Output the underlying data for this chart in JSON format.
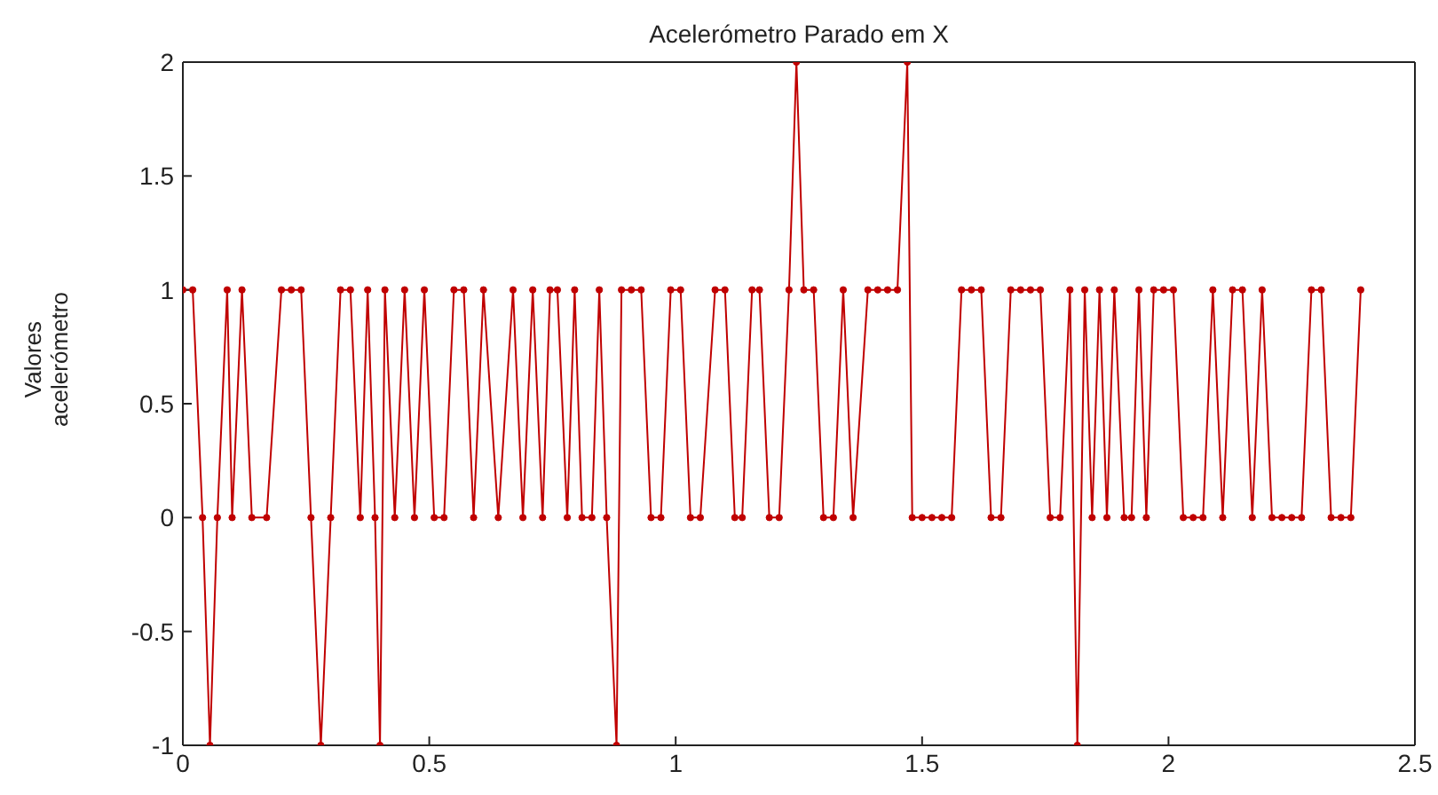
{
  "chart_data": {
    "type": "line",
    "title": "Acelerómetro Parado em X",
    "ylabel": "Valores acelerómetro",
    "x": [
      0,
      0.02,
      0.04,
      0.055,
      0.07,
      0.09,
      0.1,
      0.12,
      0.14,
      0.17,
      0.2,
      0.22,
      0.24,
      0.26,
      0.28,
      0.3,
      0.32,
      0.34,
      0.36,
      0.375,
      0.39,
      0.4,
      0.41,
      0.43,
      0.45,
      0.47,
      0.49,
      0.51,
      0.53,
      0.55,
      0.57,
      0.59,
      0.61,
      0.64,
      0.67,
      0.69,
      0.71,
      0.73,
      0.745,
      0.76,
      0.78,
      0.795,
      0.81,
      0.83,
      0.845,
      0.86,
      0.88,
      0.89,
      0.91,
      0.93,
      0.95,
      0.97,
      0.99,
      1.01,
      1.03,
      1.05,
      1.08,
      1.1,
      1.12,
      1.135,
      1.155,
      1.17,
      1.19,
      1.21,
      1.23,
      1.245,
      1.26,
      1.28,
      1.3,
      1.32,
      1.34,
      1.36,
      1.39,
      1.41,
      1.43,
      1.45,
      1.47,
      1.48,
      1.5,
      1.52,
      1.54,
      1.56,
      1.58,
      1.6,
      1.62,
      1.64,
      1.66,
      1.68,
      1.7,
      1.72,
      1.74,
      1.76,
      1.78,
      1.8,
      1.815,
      1.83,
      1.845,
      1.86,
      1.875,
      1.89,
      1.91,
      1.925,
      1.94,
      1.955,
      1.97,
      1.99,
      2.01,
      2.03,
      2.05,
      2.07,
      2.09,
      2.11,
      2.13,
      2.15,
      2.17,
      2.19,
      2.21,
      2.23,
      2.25,
      2.27,
      2.29,
      2.31,
      2.33,
      2.35,
      2.37,
      2.39
    ],
    "series": [
      {
        "color": "#c00000",
        "values": [
          1,
          1,
          0,
          -1,
          0,
          1,
          0,
          1,
          0,
          0,
          1,
          1,
          1,
          0,
          -1,
          0,
          1,
          1,
          0,
          1,
          0,
          -1,
          1,
          0,
          1,
          0,
          1,
          0,
          0,
          1,
          1,
          0,
          1,
          0,
          1,
          0,
          1,
          0,
          1,
          1,
          0,
          1,
          0,
          0,
          1,
          0,
          -1,
          1,
          1,
          1,
          0,
          0,
          1,
          1,
          0,
          0,
          1,
          1,
          0,
          0,
          1,
          1,
          0,
          0,
          1,
          2,
          1,
          1,
          0,
          0,
          1,
          0,
          1,
          1,
          1,
          1,
          2,
          0,
          0,
          0,
          0,
          0,
          1,
          1,
          1,
          0,
          0,
          1,
          1,
          1,
          1,
          0,
          0,
          1,
          -1,
          1,
          0,
          1,
          0,
          1,
          0,
          0,
          1,
          0,
          1,
          1,
          1,
          0,
          0,
          0,
          1,
          0,
          1,
          1,
          0,
          1,
          0,
          0,
          0,
          0,
          1,
          1,
          0,
          0,
          0,
          1
        ]
      }
    ],
    "xlim": [
      0,
      2.5
    ],
    "xticks": [
      0,
      0.5,
      1,
      1.5,
      2,
      2.5
    ],
    "ylim": [
      -1,
      2
    ],
    "yticks": [
      -1,
      -0.5,
      0,
      0.5,
      1,
      1.5,
      2
    ],
    "grid": false,
    "marker": "circle",
    "line_style": "solid"
  }
}
